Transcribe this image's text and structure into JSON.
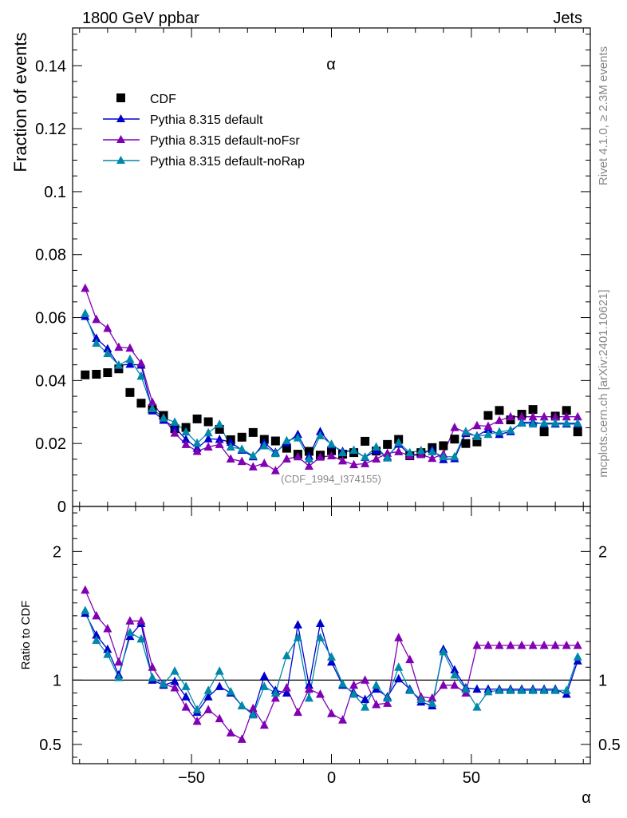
{
  "header": {
    "left": "1800 GeV ppbar",
    "right": "Jets"
  },
  "side_labels": {
    "rivet": "Rivet 4.1.0, ≥ 2.3M events",
    "mcplots": "mcplots.cern.ch [arXiv:2401.10621]"
  },
  "colors": {
    "CDF": "#000000",
    "default": "#0000cc",
    "noFsr": "#8000b3",
    "noRap": "#0088aa",
    "ref_line": "#000000"
  },
  "chart_data": [
    {
      "type": "scatter",
      "title": "α",
      "ylabel": "Fraction of events",
      "xlabel": "",
      "xlim": [
        -92.5,
        92.5
      ],
      "ylim": [
        0,
        0.152
      ],
      "yticks": [
        0,
        0.02,
        0.04,
        0.06,
        0.08,
        0.1,
        0.12,
        0.14
      ],
      "yticklabels": [
        "0",
        "0.02",
        "0.04",
        "0.06",
        "0.08",
        "0.1",
        "0.12",
        "0.14"
      ],
      "watermark": "(CDF_1994_I374155)",
      "legend_position": "top-left",
      "x": [
        -88,
        -84,
        -80,
        -76,
        -72,
        -68,
        -64,
        -60,
        -56,
        -52,
        -48,
        -44,
        -40,
        -36,
        -32,
        -28,
        -24,
        -20,
        -16,
        -12,
        -8,
        -4,
        0,
        4,
        8,
        12,
        16,
        20,
        24,
        28,
        32,
        36,
        40,
        44,
        48,
        52,
        56,
        60,
        64,
        68,
        72,
        76,
        80,
        84,
        88
      ],
      "series": [
        {
          "name": "CDF",
          "marker": "square",
          "color_key": "CDF",
          "values": [
            0.0418,
            0.042,
            0.0425,
            0.0437,
            0.0362,
            0.0328,
            0.031,
            0.0289,
            0.0247,
            0.0251,
            0.0278,
            0.0269,
            0.0245,
            0.0212,
            0.022,
            0.0235,
            0.0213,
            0.0208,
            0.0185,
            0.0166,
            0.0175,
            0.0163,
            0.0177,
            0.0166,
            0.0171,
            0.0207,
            0.0176,
            0.0197,
            0.0213,
            0.0161,
            0.0171,
            0.0187,
            0.0193,
            0.0214,
            0.02,
            0.0205,
            0.0289,
            0.0305,
            0.0275,
            0.0293,
            0.0308,
            0.0237,
            0.0287,
            0.0305,
            0.0237
          ]
        },
        {
          "name": "Pythia 8.315 default",
          "marker": "triangle",
          "color_key": "default",
          "values": [
            0.0604,
            0.0534,
            0.0501,
            0.0448,
            0.0452,
            0.0449,
            0.0304,
            0.0274,
            0.0251,
            0.0213,
            0.0185,
            0.0215,
            0.0213,
            0.0204,
            0.0179,
            0.0158,
            0.0203,
            0.0172,
            0.0202,
            0.0229,
            0.016,
            0.0238,
            0.0195,
            0.0175,
            0.0178,
            0.0156,
            0.0178,
            0.0158,
            0.0198,
            0.0164,
            0.0166,
            0.0181,
            0.0149,
            0.0152,
            0.0232,
            0.0224,
            0.0245,
            0.0229,
            0.0238,
            0.0267,
            0.0268,
            0.0262,
            0.0262,
            0.0262,
            0.0262
          ]
        },
        {
          "name": "Pythia 8.315 default-noFsr",
          "marker": "triangle",
          "color_key": "noFsr",
          "values": [
            0.0693,
            0.0594,
            0.0566,
            0.0506,
            0.0503,
            0.0455,
            0.0331,
            0.0281,
            0.0233,
            0.0197,
            0.0175,
            0.0189,
            0.0197,
            0.0151,
            0.0143,
            0.0126,
            0.0137,
            0.0114,
            0.0151,
            0.0158,
            0.0128,
            0.0157,
            0.0161,
            0.0145,
            0.0133,
            0.0136,
            0.0151,
            0.0169,
            0.0174,
            0.0161,
            0.0165,
            0.0153,
            0.0166,
            0.0251,
            0.0235,
            0.0257,
            0.0255,
            0.0273,
            0.0285,
            0.0285,
            0.0285,
            0.0285,
            0.0285,
            0.0285,
            0.0285
          ]
        },
        {
          "name": "Pythia 8.315 default-noRap",
          "marker": "triangle",
          "color_key": "noRap",
          "values": [
            0.0613,
            0.0519,
            0.0486,
            0.0449,
            0.0468,
            0.0414,
            0.0311,
            0.0281,
            0.0268,
            0.0237,
            0.0201,
            0.0234,
            0.0261,
            0.0189,
            0.0182,
            0.0161,
            0.0193,
            0.0168,
            0.0209,
            0.0218,
            0.0151,
            0.0225,
            0.0198,
            0.0171,
            0.0179,
            0.0157,
            0.0189,
            0.0154,
            0.0203,
            0.0171,
            0.0178,
            0.0174,
            0.0158,
            0.0158,
            0.0238,
            0.0222,
            0.0229,
            0.0237,
            0.0242,
            0.0265,
            0.0262,
            0.0265,
            0.0265,
            0.0265,
            0.0265
          ]
        }
      ]
    },
    {
      "type": "line",
      "title": "",
      "ylabel": "Ratio to CDF",
      "xlabel": "α",
      "xlim": [
        -92.5,
        92.5
      ],
      "ylim": [
        0.35,
        2.35
      ],
      "ref_value": 1,
      "xticks": [
        -50,
        0,
        50
      ],
      "xticklabels": [
        "−50",
        "0",
        "50"
      ],
      "yticks": [
        0.5,
        1,
        2
      ],
      "yticklabels": [
        "0.5",
        "1",
        "2"
      ],
      "x": [
        -88,
        -84,
        -80,
        -76,
        -72,
        -68,
        -64,
        -60,
        -56,
        -52,
        -48,
        -44,
        -40,
        -36,
        -32,
        -28,
        -24,
        -20,
        -16,
        -12,
        -8,
        -4,
        0,
        4,
        8,
        12,
        16,
        20,
        24,
        28,
        32,
        36,
        40,
        44,
        48,
        52,
        56,
        60,
        64,
        68,
        72,
        76,
        80,
        84,
        88
      ],
      "series": [
        {
          "name": "Pythia 8.315 default",
          "color_key": "default",
          "values": [
            1.52,
            1.35,
            1.24,
            1.04,
            1.34,
            1.44,
            1.0,
            0.96,
            0.99,
            0.87,
            0.75,
            0.87,
            0.95,
            0.9,
            0.8,
            0.74,
            1.03,
            0.92,
            0.9,
            1.43,
            0.96,
            1.44,
            1.14,
            0.96,
            0.9,
            0.85,
            0.93,
            0.87,
            1.01,
            0.93,
            0.83,
            0.8,
            1.24,
            1.08,
            0.94,
            0.93,
            0.93,
            0.93,
            0.93,
            0.93,
            0.93,
            0.93,
            0.93,
            0.89,
            1.15
          ]
        },
        {
          "name": "Pythia 8.315 default-noFsr",
          "color_key": "noFsr",
          "values": [
            1.7,
            1.5,
            1.4,
            1.14,
            1.46,
            1.46,
            1.1,
            0.97,
            0.94,
            0.79,
            0.68,
            0.77,
            0.7,
            0.59,
            0.54,
            0.78,
            0.65,
            0.86,
            0.94,
            0.75,
            0.93,
            0.89,
            0.74,
            0.69,
            0.96,
            1.0,
            0.81,
            0.82,
            1.33,
            1.16,
            0.87,
            0.86,
            0.96,
            0.96,
            0.9,
            1.27,
            1.27,
            1.27,
            1.27,
            1.27,
            1.27,
            1.27,
            1.27,
            1.27,
            1.27
          ]
        },
        {
          "name": "Pythia 8.315 default-noRap",
          "color_key": "noRap",
          "values": [
            1.54,
            1.31,
            1.2,
            1.02,
            1.37,
            1.32,
            1.02,
            0.97,
            1.07,
            0.95,
            0.77,
            0.92,
            1.07,
            0.91,
            0.8,
            0.73,
            0.95,
            0.9,
            1.19,
            1.33,
            0.86,
            1.33,
            1.18,
            0.97,
            0.89,
            0.79,
            0.96,
            0.86,
            1.1,
            0.92,
            0.85,
            0.82,
            1.22,
            1.04,
            0.93,
            0.79,
            0.91,
            0.92,
            0.92,
            0.92,
            0.92,
            0.92,
            0.92,
            0.92,
            1.18
          ]
        }
      ]
    }
  ]
}
